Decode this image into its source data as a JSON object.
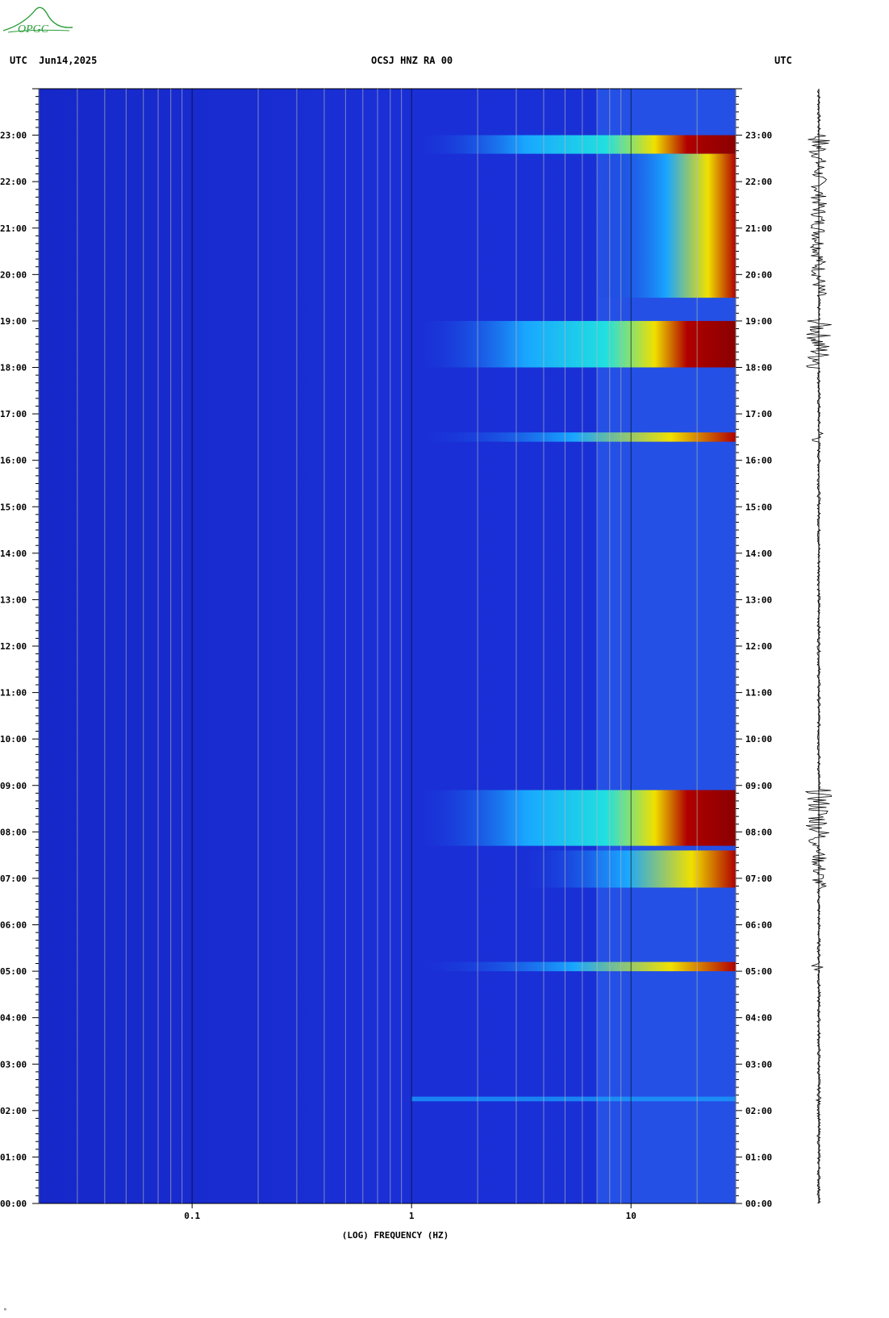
{
  "header": {
    "left": "UTC  Jun14,2025",
    "center": "OCSJ HNZ RA 00",
    "right": "UTC"
  },
  "logo": {
    "text": "OPGC",
    "color": "#2a9d3a"
  },
  "footnote": "ᵐ",
  "colors": {
    "background_low": "#1a2fd6",
    "mid": "#19a6ff",
    "high_cyan": "#20e0e0",
    "yellow": "#f0e000",
    "red": "#b00000",
    "dark_red": "#8a0000",
    "gridline": "#b8b8b8"
  },
  "chart_data": {
    "type": "heatmap",
    "title": "OCSJ HNZ RA 00",
    "xlabel": "(LOG) FREQUENCY (HZ)",
    "ylabel": "UTC",
    "x_scale": "log",
    "xlim": [
      0.02,
      30
    ],
    "x_ticks": [
      {
        "value": 0.1,
        "label": "0.1"
      },
      {
        "value": 1,
        "label": "1"
      },
      {
        "value": 10,
        "label": "10"
      }
    ],
    "ylim_hours": [
      0,
      24
    ],
    "y_ticks": [
      "00:00",
      "01:00",
      "02:00",
      "03:00",
      "04:00",
      "05:00",
      "06:00",
      "07:00",
      "08:00",
      "09:00",
      "10:00",
      "11:00",
      "12:00",
      "13:00",
      "14:00",
      "15:00",
      "16:00",
      "17:00",
      "18:00",
      "19:00",
      "20:00",
      "21:00",
      "22:00",
      "23:00"
    ],
    "strong_energy_bands": [
      {
        "from_hour": 18.0,
        "to_hour": 19.0,
        "min_freq_hz": 1.0,
        "intensity": "high"
      },
      {
        "from_hour": 7.7,
        "to_hour": 8.9,
        "min_freq_hz": 1.0,
        "intensity": "high"
      },
      {
        "from_hour": 22.6,
        "to_hour": 23.0,
        "min_freq_hz": 1.0,
        "intensity": "high"
      },
      {
        "from_hour": 16.4,
        "to_hour": 16.6,
        "min_freq_hz": 1.0,
        "intensity": "medium"
      },
      {
        "from_hour": 6.8,
        "to_hour": 7.6,
        "min_freq_hz": 3.0,
        "intensity": "medium"
      },
      {
        "from_hour": 19.5,
        "to_hour": 22.6,
        "min_freq_hz": 7.0,
        "intensity": "medium"
      },
      {
        "from_hour": 5.0,
        "to_hour": 5.2,
        "min_freq_hz": 1.0,
        "intensity": "medium"
      },
      {
        "from_hour": 2.2,
        "to_hour": 2.3,
        "min_freq_hz": 1.0,
        "intensity": "low"
      }
    ],
    "grid": true,
    "legend": "none"
  }
}
